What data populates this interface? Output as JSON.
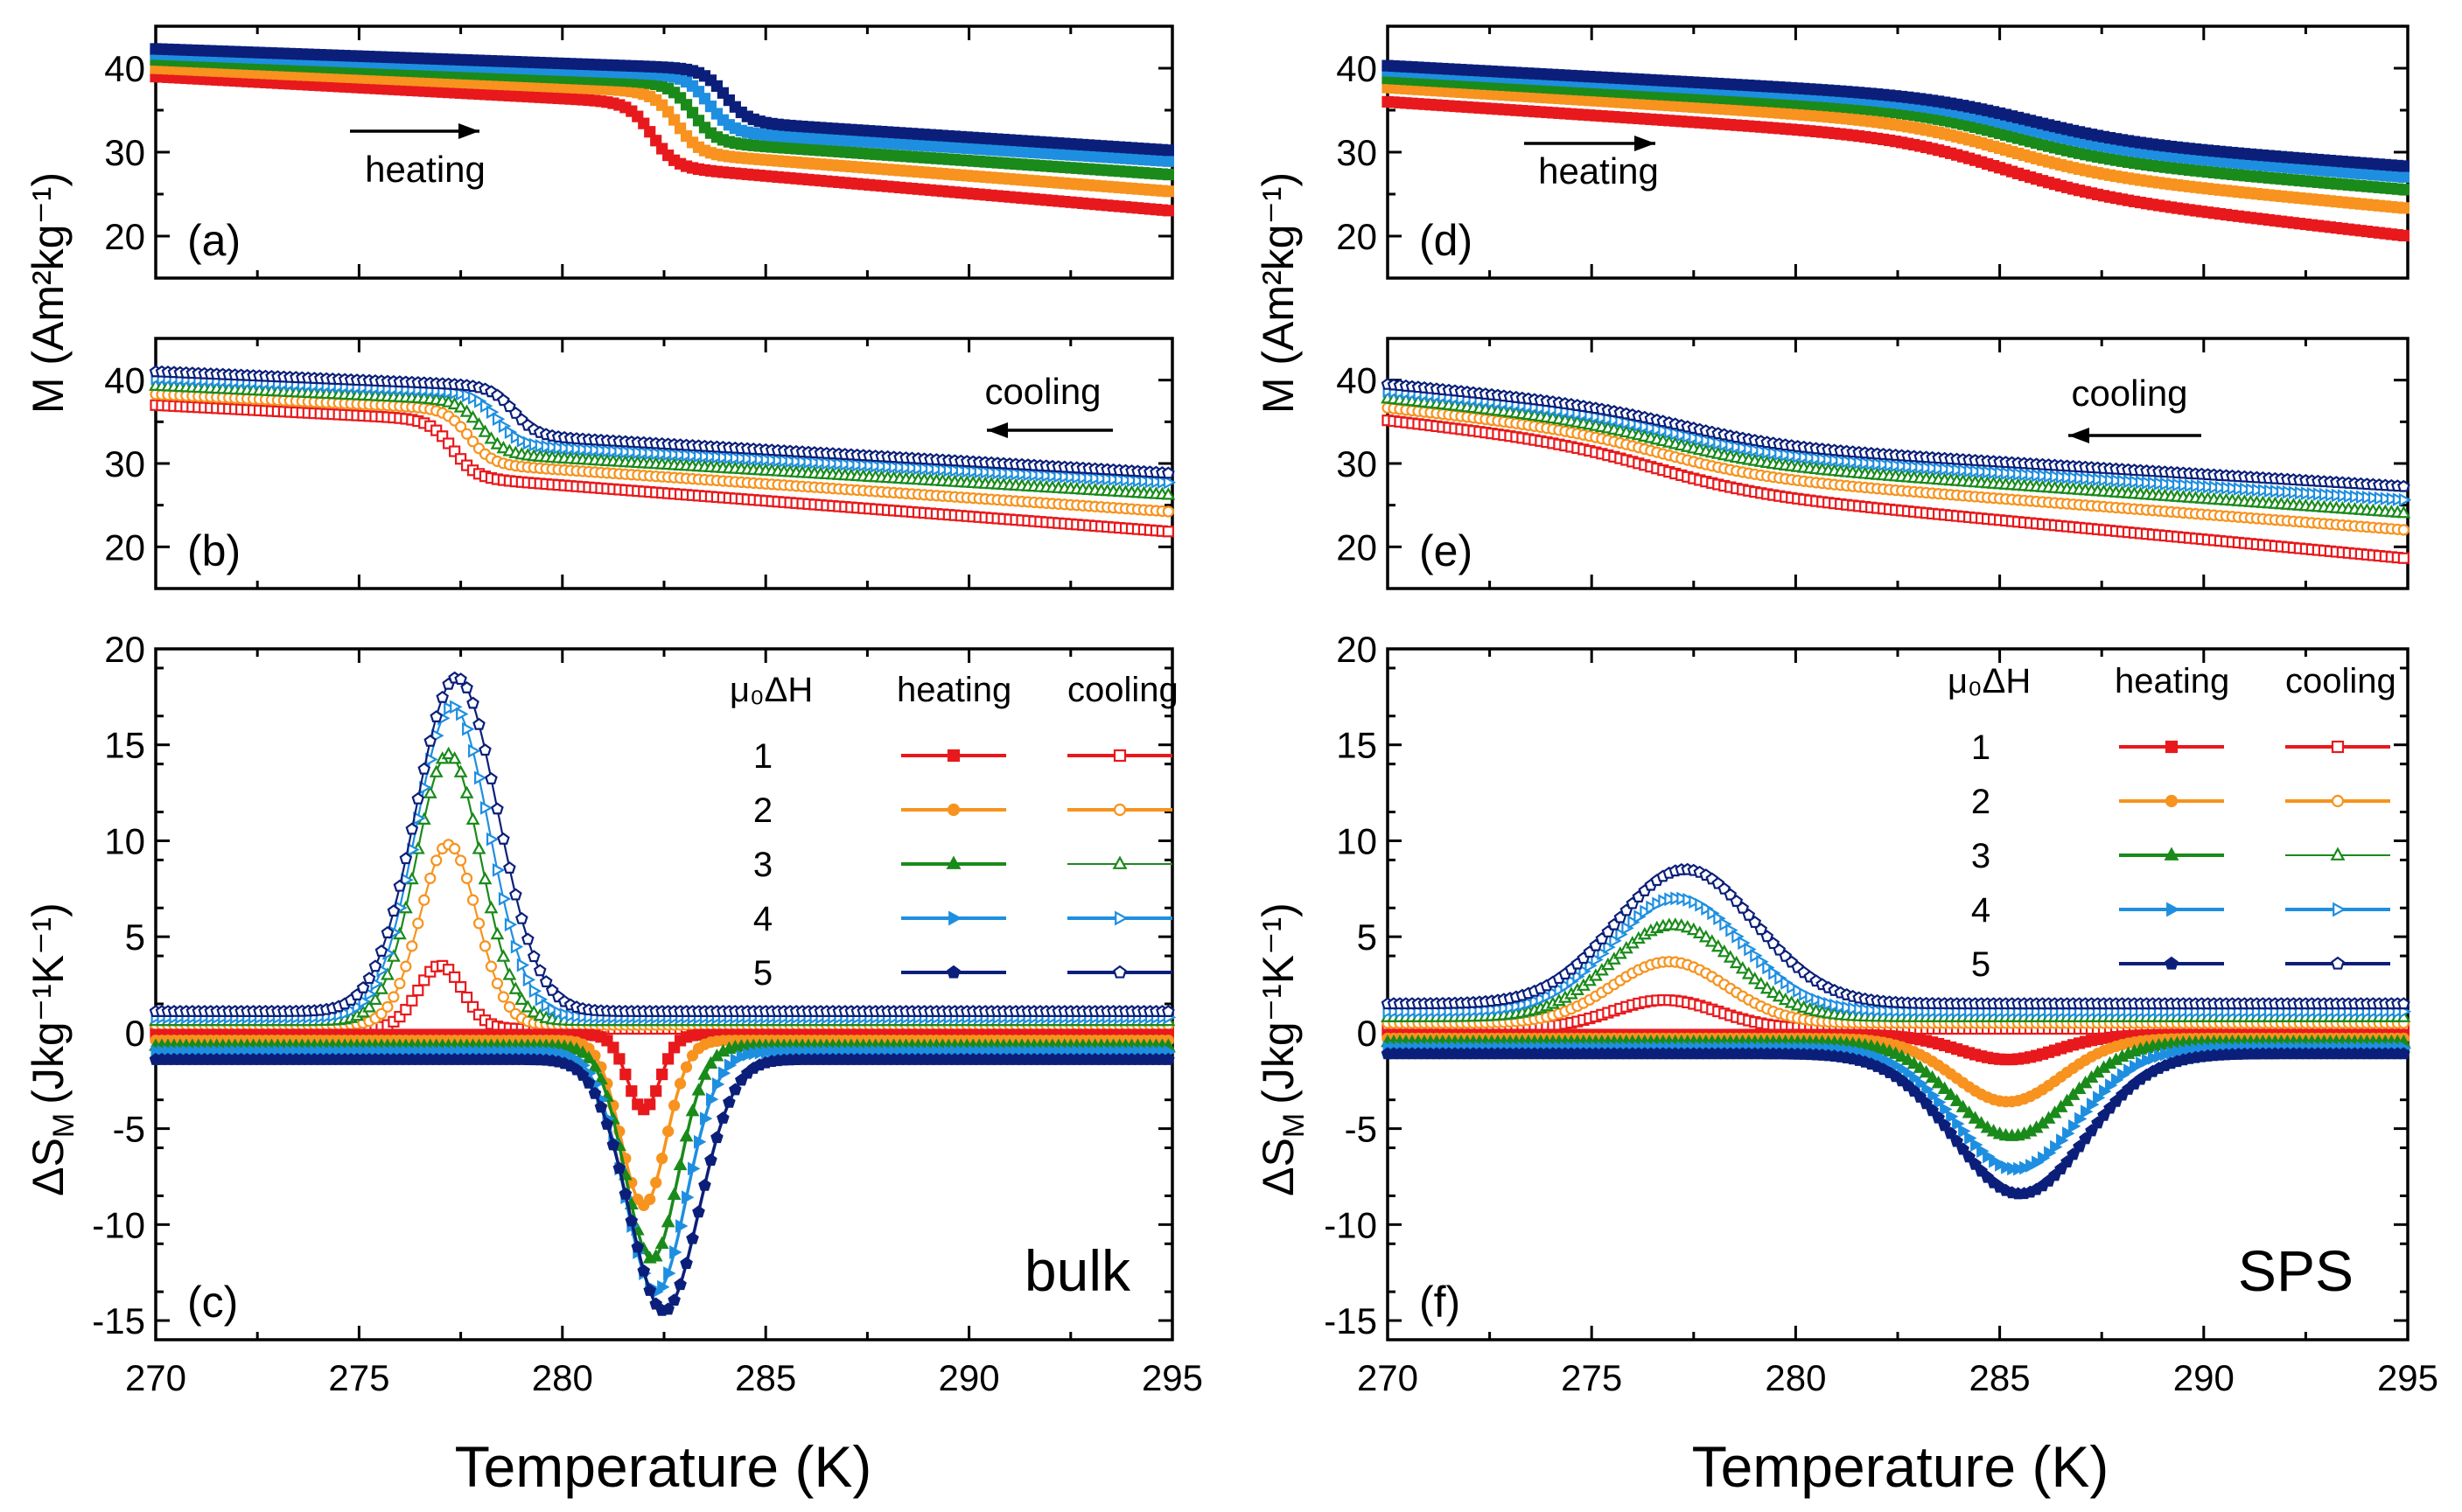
{
  "figure": {
    "x_axis_title": "Temperature (K)",
    "y_axis_title_M": "M (Am²kg⁻¹)",
    "y_axis_title_S": "ΔS",
    "y_axis_title_S_sub": "M",
    "y_axis_title_S_units": "(Jkg⁻¹K⁻¹)",
    "legend": {
      "field_header": "μ₀ΔH",
      "heating_header": "heating",
      "cooling_header": "cooling",
      "fields": [
        "1",
        "2",
        "3",
        "4",
        "5"
      ]
    },
    "colors": [
      "#e8191c",
      "#f7931e",
      "#1a8a1a",
      "#1e8fe0",
      "#0b1f7a"
    ],
    "panel_labels": [
      "(a)",
      "(b)",
      "(c)",
      "(d)",
      "(e)",
      "(f)"
    ],
    "annotations": {
      "heating": "heating",
      "cooling": "cooling",
      "bulk": "bulk",
      "sps": "SPS"
    }
  },
  "chart_data": [
    {
      "id": "a",
      "type": "line",
      "title": "(a)",
      "sample": "bulk",
      "mode": "heating",
      "xlabel": "Temperature (K)",
      "ylabel": "M (Am²kg⁻¹)",
      "xlim": [
        270,
        295
      ],
      "ylim": [
        15,
        45
      ],
      "xticks": [
        270,
        275,
        280,
        285,
        290,
        295
      ],
      "yticks": [
        20,
        30,
        40
      ],
      "transition": {
        "T0": [
          282.2,
          282.8,
          283.2,
          283.6,
          284.0
        ],
        "width": 0.28
      },
      "series": [
        {
          "name": "1",
          "low_T": [
            270,
            39.0
          ],
          "pre_T": [
            281.5,
            36.0
          ],
          "post_T": [
            283.0,
            28.0
          ],
          "high_T": [
            295,
            23.0
          ]
        },
        {
          "name": "2",
          "low_T": [
            270,
            40.0
          ],
          "pre_T": [
            282.0,
            37.3
          ],
          "post_T": [
            283.6,
            29.6
          ],
          "high_T": [
            295,
            25.3
          ]
        },
        {
          "name": "3",
          "low_T": [
            270,
            41.0
          ],
          "pre_T": [
            282.5,
            38.3
          ],
          "post_T": [
            284.0,
            31.0
          ],
          "high_T": [
            295,
            27.3
          ]
        },
        {
          "name": "4",
          "low_T": [
            270,
            41.7
          ],
          "pre_T": [
            283.0,
            39.2
          ],
          "post_T": [
            284.4,
            32.2
          ],
          "high_T": [
            295,
            28.9
          ]
        },
        {
          "name": "5",
          "low_T": [
            270,
            42.3
          ],
          "pre_T": [
            283.3,
            40.0
          ],
          "post_T": [
            284.8,
            33.4
          ],
          "high_T": [
            295,
            30.2
          ]
        }
      ]
    },
    {
      "id": "b",
      "type": "line",
      "title": "(b)",
      "sample": "bulk",
      "mode": "cooling",
      "xlabel": "Temperature (K)",
      "ylabel": "M (Am²kg⁻¹)",
      "xlim": [
        270,
        295
      ],
      "ylim": [
        15,
        45
      ],
      "xticks": [
        270,
        275,
        280,
        285,
        290,
        295
      ],
      "yticks": [
        20,
        30,
        40
      ],
      "transition": {
        "T0": [
          277.3,
          277.7,
          278.0,
          278.4,
          278.8
        ],
        "width": 0.28
      },
      "series": [
        {
          "name": "1",
          "low_T": [
            270,
            37.0
          ],
          "pre_T": [
            276.8,
            35.3
          ],
          "post_T": [
            277.8,
            28.2
          ],
          "high_T": [
            295,
            21.8
          ]
        },
        {
          "name": "2",
          "low_T": [
            270,
            38.3
          ],
          "pre_T": [
            277.2,
            36.6
          ],
          "post_T": [
            278.3,
            29.8
          ],
          "high_T": [
            295,
            24.2
          ]
        },
        {
          "name": "3",
          "low_T": [
            270,
            39.3
          ],
          "pre_T": [
            277.5,
            37.6
          ],
          "post_T": [
            278.6,
            31.0
          ],
          "high_T": [
            295,
            26.2
          ]
        },
        {
          "name": "4",
          "low_T": [
            270,
            40.2
          ],
          "pre_T": [
            277.9,
            38.5
          ],
          "post_T": [
            279.0,
            32.1
          ],
          "high_T": [
            295,
            27.7
          ]
        },
        {
          "name": "5",
          "low_T": [
            270,
            41.0
          ],
          "pre_T": [
            278.3,
            39.3
          ],
          "post_T": [
            279.4,
            33.2
          ],
          "high_T": [
            295,
            28.8
          ]
        }
      ]
    },
    {
      "id": "c",
      "type": "line",
      "title": "(c)",
      "sample": "bulk",
      "xlabel": "Temperature (K)",
      "ylabel": "ΔS_M (Jkg⁻¹K⁻¹)",
      "xlim": [
        270,
        295
      ],
      "ylim": [
        -16,
        20
      ],
      "xticks": [
        270,
        275,
        280,
        285,
        290,
        295
      ],
      "yticks": [
        -15,
        -10,
        -5,
        0,
        5,
        10,
        15,
        20
      ],
      "series": [
        {
          "name": "1 cooling",
          "baseline": 0.2,
          "peak_T": 277.0,
          "peak_value": 3.5,
          "width": 0.55
        },
        {
          "name": "2 cooling",
          "baseline": 0.4,
          "peak_T": 277.2,
          "peak_value": 9.8,
          "width": 0.7
        },
        {
          "name": "3 cooling",
          "baseline": 0.6,
          "peak_T": 277.2,
          "peak_value": 14.5,
          "width": 0.8
        },
        {
          "name": "4 cooling",
          "baseline": 0.8,
          "peak_T": 277.3,
          "peak_value": 17.0,
          "width": 0.9
        },
        {
          "name": "5 cooling",
          "baseline": 1.1,
          "peak_T": 277.4,
          "peak_value": 18.5,
          "width": 1.0
        },
        {
          "name": "1 heating",
          "baseline": -0.1,
          "peak_T": 282.0,
          "peak_value": -4.0,
          "width": 0.4
        },
        {
          "name": "2 heating",
          "baseline": -0.4,
          "peak_T": 282.0,
          "peak_value": -9.0,
          "width": 0.55
        },
        {
          "name": "3 heating",
          "baseline": -0.7,
          "peak_T": 282.2,
          "peak_value": -11.8,
          "width": 0.65
        },
        {
          "name": "4 heating",
          "baseline": -1.0,
          "peak_T": 282.3,
          "peak_value": -13.5,
          "width": 0.75
        },
        {
          "name": "5 heating",
          "baseline": -1.4,
          "peak_T": 282.5,
          "peak_value": -14.5,
          "width": 0.85
        }
      ]
    },
    {
      "id": "d",
      "type": "line",
      "title": "(d)",
      "sample": "SPS",
      "mode": "heating",
      "xlabel": "Temperature (K)",
      "ylabel": "M (Am²kg⁻¹)",
      "xlim": [
        270,
        295
      ],
      "ylim": [
        15,
        45
      ],
      "xticks": [
        270,
        275,
        280,
        285,
        290,
        295
      ],
      "yticks": [
        20,
        30,
        40
      ],
      "transition": {
        "T0": [
          284.8,
          285.0,
          285.2,
          285.4,
          285.6
        ],
        "width": 1.3
      },
      "series": [
        {
          "name": "1",
          "low_T": [
            270,
            36.0
          ],
          "pre_T": [
            281.8,
            32.2
          ],
          "post_T": [
            287.8,
            24.0
          ],
          "high_T": [
            295,
            20.0
          ]
        },
        {
          "name": "2",
          "low_T": [
            270,
            37.7
          ],
          "pre_T": [
            282.0,
            34.0
          ],
          "post_T": [
            288.0,
            26.5
          ],
          "high_T": [
            295,
            23.3
          ]
        },
        {
          "name": "3",
          "low_T": [
            270,
            38.8
          ],
          "pre_T": [
            282.2,
            35.3
          ],
          "post_T": [
            288.2,
            28.3
          ],
          "high_T": [
            295,
            25.5
          ]
        },
        {
          "name": "4",
          "low_T": [
            270,
            39.7
          ],
          "pre_T": [
            282.4,
            36.3
          ],
          "post_T": [
            288.4,
            29.6
          ],
          "high_T": [
            295,
            27.0
          ]
        },
        {
          "name": "5",
          "low_T": [
            270,
            40.3
          ],
          "pre_T": [
            282.6,
            37.0
          ],
          "post_T": [
            288.6,
            30.6
          ],
          "high_T": [
            295,
            28.3
          ]
        }
      ]
    },
    {
      "id": "e",
      "type": "line",
      "title": "(e)",
      "sample": "SPS",
      "mode": "cooling",
      "xlabel": "Temperature (K)",
      "ylabel": "M (Am²kg⁻¹)",
      "xlim": [
        270,
        295
      ],
      "ylim": [
        15,
        45
      ],
      "xticks": [
        270,
        275,
        280,
        285,
        290,
        295
      ],
      "yticks": [
        20,
        30,
        40
      ],
      "transition": {
        "T0": [
          276.7,
          276.9,
          277.1,
          277.3,
          277.5
        ],
        "width": 1.3
      },
      "series": [
        {
          "name": "1",
          "low_T": [
            270,
            35.2
          ],
          "pre_T": [
            274.0,
            33.0
          ],
          "post_T": [
            280.0,
            25.5
          ],
          "high_T": [
            295,
            18.6
          ]
        },
        {
          "name": "2",
          "low_T": [
            270,
            36.7
          ],
          "pre_T": [
            274.2,
            34.5
          ],
          "post_T": [
            280.2,
            27.6
          ],
          "high_T": [
            295,
            22.0
          ]
        },
        {
          "name": "3",
          "low_T": [
            270,
            37.8
          ],
          "pre_T": [
            274.4,
            35.6
          ],
          "post_T": [
            280.4,
            29.1
          ],
          "high_T": [
            295,
            24.0
          ]
        },
        {
          "name": "4",
          "low_T": [
            270,
            38.7
          ],
          "pre_T": [
            274.6,
            36.5
          ],
          "post_T": [
            280.6,
            30.3
          ],
          "high_T": [
            295,
            25.6
          ]
        },
        {
          "name": "5",
          "low_T": [
            270,
            39.5
          ],
          "pre_T": [
            274.8,
            37.3
          ],
          "post_T": [
            280.8,
            31.4
          ],
          "high_T": [
            295,
            27.2
          ]
        }
      ]
    },
    {
      "id": "f",
      "type": "line",
      "title": "(f)",
      "sample": "SPS",
      "xlabel": "Temperature (K)",
      "ylabel": "ΔS_M (Jkg⁻¹K⁻¹)",
      "xlim": [
        270,
        295
      ],
      "ylim": [
        -16,
        20
      ],
      "xticks": [
        270,
        275,
        280,
        285,
        290,
        295
      ],
      "yticks": [
        -15,
        -10,
        -5,
        0,
        5,
        10,
        15,
        20
      ],
      "series": [
        {
          "name": "1 cooling",
          "baseline": 0.2,
          "peak_T": 276.8,
          "peak_value": 1.7,
          "width": 1.3
        },
        {
          "name": "2 cooling",
          "baseline": 0.5,
          "peak_T": 276.9,
          "peak_value": 3.7,
          "width": 1.4
        },
        {
          "name": "3 cooling",
          "baseline": 0.8,
          "peak_T": 277.0,
          "peak_value": 5.6,
          "width": 1.5
        },
        {
          "name": "4 cooling",
          "baseline": 1.1,
          "peak_T": 277.1,
          "peak_value": 7.0,
          "width": 1.6
        },
        {
          "name": "5 cooling",
          "baseline": 1.5,
          "peak_T": 277.3,
          "peak_value": 8.5,
          "width": 1.7
        },
        {
          "name": "1 heating",
          "baseline": -0.1,
          "peak_T": 285.2,
          "peak_value": -1.4,
          "width": 1.2
        },
        {
          "name": "2 heating",
          "baseline": -0.3,
          "peak_T": 285.2,
          "peak_value": -3.6,
          "width": 1.3
        },
        {
          "name": "3 heating",
          "baseline": -0.5,
          "peak_T": 285.3,
          "peak_value": -5.4,
          "width": 1.4
        },
        {
          "name": "4 heating",
          "baseline": -0.8,
          "peak_T": 285.4,
          "peak_value": -7.1,
          "width": 1.5
        },
        {
          "name": "5 heating",
          "baseline": -1.1,
          "peak_T": 285.5,
          "peak_value": -8.4,
          "width": 1.6
        }
      ]
    }
  ]
}
